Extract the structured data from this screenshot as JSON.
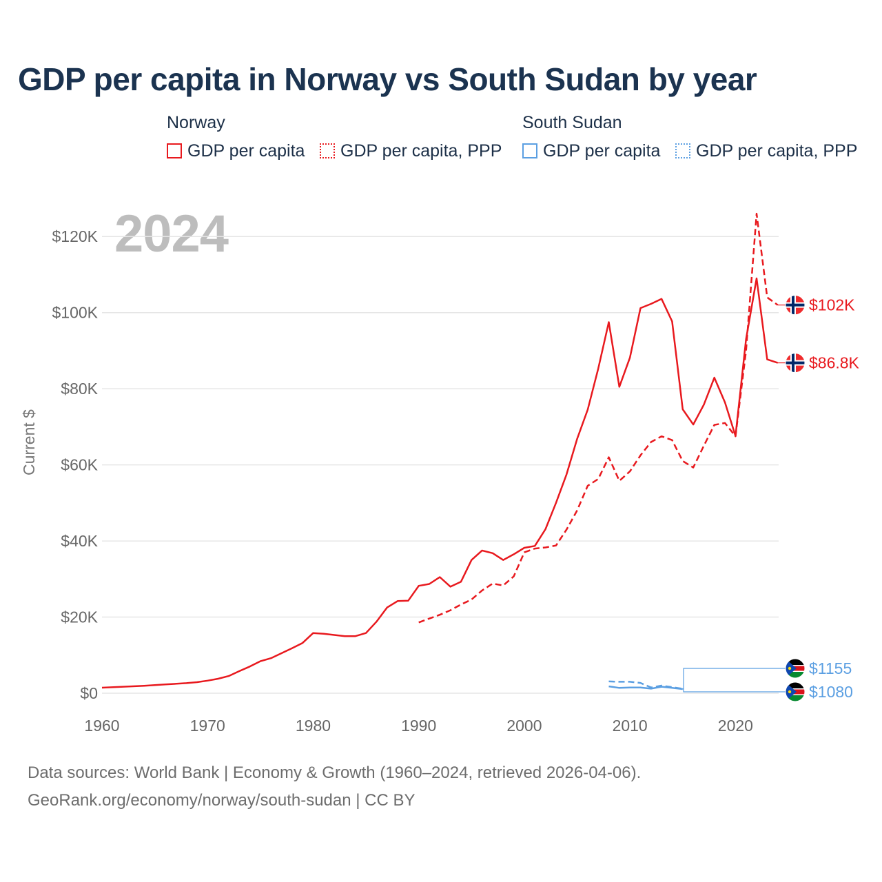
{
  "chart_data": {
    "type": "line",
    "title": "GDP per capita in Norway vs South Sudan by year",
    "year_label": "2024",
    "ylabel": "Current $",
    "xlabel": "",
    "xlim": [
      1960,
      2025
    ],
    "ylim": [
      0,
      130000
    ],
    "x_ticks": [
      "1960",
      "1970",
      "1980",
      "1990",
      "2000",
      "2010",
      "2020"
    ],
    "y_ticks": [
      {
        "value": 0,
        "label": "$0"
      },
      {
        "value": 20000,
        "label": "$20K"
      },
      {
        "value": 40000,
        "label": "$40K"
      },
      {
        "value": 60000,
        "label": "$60K"
      },
      {
        "value": 80000,
        "label": "$80K"
      },
      {
        "value": 100000,
        "label": "$100K"
      },
      {
        "value": 120000,
        "label": "$120K"
      }
    ],
    "legend": [
      {
        "group": "Norway",
        "items": [
          "GDP per capita",
          "GDP per capita, PPP"
        ]
      },
      {
        "group": "South Sudan",
        "items": [
          "GDP per capita",
          "GDP per capita, PPP"
        ]
      }
    ],
    "colors": {
      "norway": "#e8191e",
      "south_sudan": "#5b9fe2"
    },
    "series": [
      {
        "name": "Norway GDP per capita",
        "country": "Norway",
        "style": "solid",
        "color": "#e8191e",
        "x": [
          1960,
          1962,
          1964,
          1966,
          1968,
          1969,
          1970,
          1971,
          1972,
          1973,
          1974,
          1975,
          1976,
          1977,
          1978,
          1979,
          1980,
          1981,
          1982,
          1983,
          1984,
          1985,
          1986,
          1987,
          1988,
          1989,
          1990,
          1991,
          1992,
          1993,
          1994,
          1995,
          1996,
          1997,
          1998,
          1999,
          2000,
          2001,
          2002,
          2003,
          2004,
          2005,
          2006,
          2007,
          2008,
          2009,
          2010,
          2011,
          2012,
          2013,
          2014,
          2015,
          2016,
          2017,
          2018,
          2019,
          2020,
          2021,
          2022,
          2023,
          2024
        ],
        "values": [
          1450,
          1700,
          1950,
          2300,
          2650,
          2900,
          3300,
          3800,
          4500,
          5800,
          7000,
          8400,
          9200,
          10500,
          11800,
          13200,
          15800,
          15600,
          15300,
          15000,
          15000,
          15800,
          18800,
          22500,
          24200,
          24300,
          28200,
          28700,
          30500,
          28000,
          29300,
          35000,
          37500,
          36800,
          35000,
          36500,
          38200,
          38700,
          43100,
          50000,
          57500,
          66800,
          74500,
          85300,
          97500,
          80500,
          88200,
          101200,
          102300,
          103600,
          97700,
          74600,
          70600,
          75800,
          82900,
          76400,
          67600,
          93000,
          109000,
          87700,
          86800
        ],
        "end_label": "$86.8K"
      },
      {
        "name": "Norway GDP per capita, PPP",
        "country": "Norway",
        "style": "dashed",
        "color": "#e8191e",
        "x": [
          1990,
          1991,
          1992,
          1993,
          1994,
          1995,
          1996,
          1997,
          1998,
          1999,
          2000,
          2001,
          2002,
          2003,
          2004,
          2005,
          2006,
          2007,
          2008,
          2009,
          2010,
          2011,
          2012,
          2013,
          2014,
          2015,
          2016,
          2017,
          2018,
          2019,
          2020,
          2021,
          2022,
          2023,
          2024
        ],
        "values": [
          18600,
          19600,
          20600,
          21800,
          23300,
          24600,
          27000,
          28800,
          28300,
          30700,
          37000,
          38000,
          38300,
          38800,
          43000,
          48000,
          54500,
          56300,
          62000,
          55800,
          58300,
          62500,
          66000,
          67500,
          66500,
          61000,
          59300,
          65000,
          70500,
          71000,
          67500,
          90000,
          126000,
          104000,
          102000
        ],
        "end_label": "$102K"
      },
      {
        "name": "South Sudan GDP per capita",
        "country": "South Sudan",
        "style": "solid",
        "color": "#5b9fe2",
        "x": [
          2008,
          2009,
          2010,
          2011,
          2012,
          2013,
          2014,
          2015
        ],
        "values": [
          1800,
          1400,
          1500,
          1500,
          1200,
          1700,
          1400,
          1080
        ],
        "end_label": "$1080"
      },
      {
        "name": "South Sudan GDP per capita, PPP",
        "country": "South Sudan",
        "style": "dashed",
        "color": "#5b9fe2",
        "x": [
          2008,
          2009,
          2010,
          2011,
          2012,
          2013,
          2014,
          2015
        ],
        "values": [
          3100,
          3000,
          3000,
          2700,
          1500,
          2000,
          1600,
          1155
        ],
        "end_label": "$1155"
      }
    ]
  },
  "footer": {
    "line1": "Data sources: World Bank | Economy & Growth (1960–2024, retrieved 2026-04-06).",
    "line2": "GeoRank.org/economy/norway/south-sudan | CC BY"
  }
}
